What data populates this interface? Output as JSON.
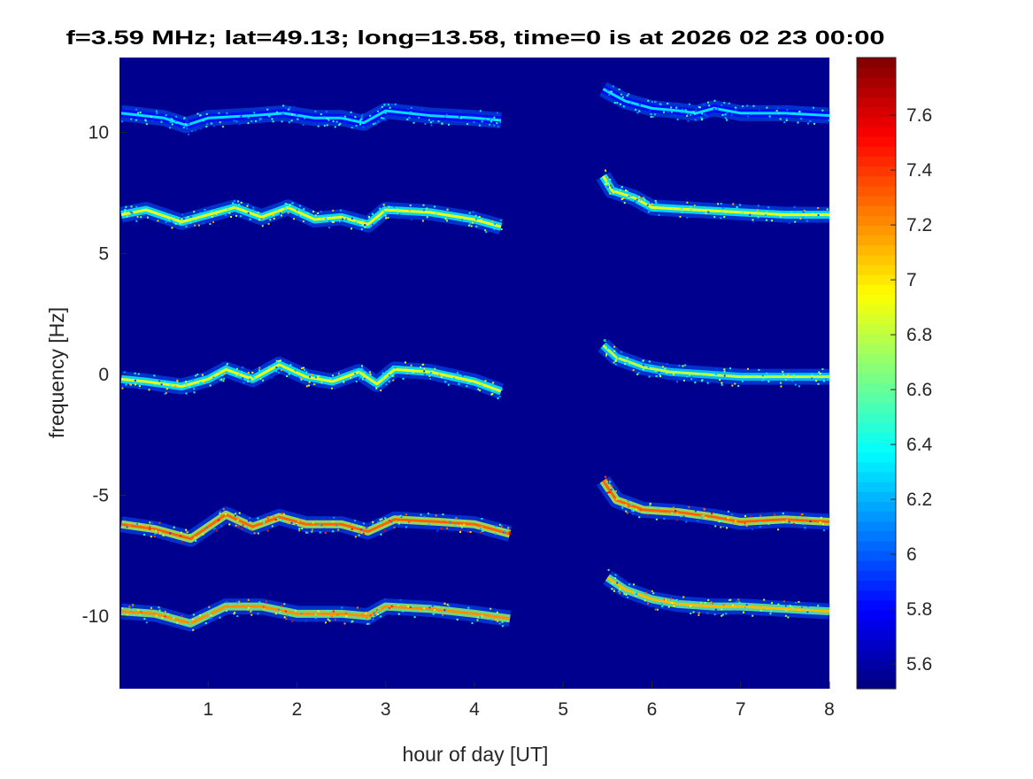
{
  "chart_data": {
    "type": "heatmap",
    "title": "f=3.59 MHz;  lat=49.13; long=13.58, time=0 is at 2026 02 23 00:00",
    "xlabel": "hour of day [UT]",
    "ylabel": "frequency [Hz]",
    "xlim": [
      0,
      8
    ],
    "ylim": [
      -13,
      13.1
    ],
    "xticks": [
      1,
      2,
      3,
      4,
      5,
      6,
      7,
      8
    ],
    "xtick_labels": [
      "1",
      "2",
      "3",
      "4",
      "5",
      "6",
      "7",
      "8"
    ],
    "yticks": [
      10,
      5,
      0,
      -5,
      -10
    ],
    "ytick_labels": [
      "10",
      "5",
      "0",
      "-5",
      "-10"
    ],
    "colormap": "jet",
    "background_color": "#00008F",
    "colorbar": {
      "clim": [
        5.51,
        7.81
      ],
      "ticks": [
        7.6,
        7.4,
        7.2,
        7,
        6.8,
        6.6,
        6.4,
        6.2,
        6,
        5.8,
        5.6
      ],
      "tick_labels": [
        "7.6",
        "7.4",
        "7.2",
        "7",
        "6.8",
        "6.6",
        "6.4",
        "6.2",
        "6",
        "5.8",
        "5.6"
      ]
    },
    "series": [
      {
        "name": "trace-left-10",
        "intensity": 6.3,
        "points": [
          [
            0.02,
            10.8
          ],
          [
            0.5,
            10.6
          ],
          [
            0.75,
            10.3
          ],
          [
            1,
            10.6
          ],
          [
            1.5,
            10.7
          ],
          [
            1.85,
            10.8
          ],
          [
            2.2,
            10.6
          ],
          [
            2.5,
            10.6
          ],
          [
            2.75,
            10.4
          ],
          [
            3,
            10.9
          ],
          [
            3.5,
            10.7
          ],
          [
            4,
            10.6
          ],
          [
            4.3,
            10.5
          ]
        ]
      },
      {
        "name": "trace-left-6",
        "intensity": 6.9,
        "points": [
          [
            0.02,
            6.6
          ],
          [
            0.3,
            6.8
          ],
          [
            0.7,
            6.3
          ],
          [
            1,
            6.6
          ],
          [
            1.3,
            6.9
          ],
          [
            1.6,
            6.5
          ],
          [
            1.9,
            6.9
          ],
          [
            2.2,
            6.4
          ],
          [
            2.5,
            6.5
          ],
          [
            2.8,
            6.2
          ],
          [
            3,
            6.8
          ],
          [
            3.5,
            6.7
          ],
          [
            4,
            6.4
          ],
          [
            4.3,
            6.1
          ]
        ]
      },
      {
        "name": "trace-left-0",
        "intensity": 6.9,
        "points": [
          [
            0.02,
            -0.2
          ],
          [
            0.3,
            -0.3
          ],
          [
            0.7,
            -0.5
          ],
          [
            1,
            -0.2
          ],
          [
            1.2,
            0.2
          ],
          [
            1.5,
            -0.2
          ],
          [
            1.8,
            0.4
          ],
          [
            2.1,
            -0.1
          ],
          [
            2.4,
            -0.3
          ],
          [
            2.7,
            0.1
          ],
          [
            2.9,
            -0.4
          ],
          [
            3.1,
            0.2
          ],
          [
            3.5,
            0.1
          ],
          [
            4,
            -0.3
          ],
          [
            4.3,
            -0.7
          ]
        ]
      },
      {
        "name": "trace-left-m6",
        "intensity": 7.3,
        "points": [
          [
            0.02,
            -6.2
          ],
          [
            0.4,
            -6.4
          ],
          [
            0.8,
            -6.8
          ],
          [
            1.2,
            -5.8
          ],
          [
            1.5,
            -6.3
          ],
          [
            1.8,
            -5.9
          ],
          [
            2.1,
            -6.2
          ],
          [
            2.5,
            -6.2
          ],
          [
            2.8,
            -6.5
          ],
          [
            3.1,
            -6.0
          ],
          [
            3.6,
            -6.1
          ],
          [
            4,
            -6.2
          ],
          [
            4.4,
            -6.6
          ]
        ]
      },
      {
        "name": "trace-left-m10",
        "intensity": 7.2,
        "points": [
          [
            0.02,
            -9.8
          ],
          [
            0.4,
            -9.9
          ],
          [
            0.8,
            -10.3
          ],
          [
            1.2,
            -9.6
          ],
          [
            1.6,
            -9.6
          ],
          [
            2,
            -9.9
          ],
          [
            2.5,
            -9.9
          ],
          [
            2.8,
            -10.0
          ],
          [
            3,
            -9.6
          ],
          [
            3.5,
            -9.7
          ],
          [
            4,
            -9.9
          ],
          [
            4.4,
            -10.1
          ]
        ]
      },
      {
        "name": "trace-right-11",
        "intensity": 6.3,
        "points": [
          [
            5.45,
            11.8
          ],
          [
            5.7,
            11.3
          ],
          [
            6,
            11.0
          ],
          [
            6.3,
            10.9
          ],
          [
            6.5,
            10.8
          ],
          [
            6.7,
            11.0
          ],
          [
            7,
            10.8
          ],
          [
            7.5,
            10.8
          ],
          [
            8,
            10.7
          ]
        ]
      },
      {
        "name": "trace-right-7",
        "intensity": 6.9,
        "points": [
          [
            5.45,
            8.2
          ],
          [
            5.55,
            7.6
          ],
          [
            5.8,
            7.3
          ],
          [
            6,
            6.9
          ],
          [
            6.5,
            6.8
          ],
          [
            7,
            6.7
          ],
          [
            7.5,
            6.6
          ],
          [
            8,
            6.6
          ]
        ]
      },
      {
        "name": "trace-right-0",
        "intensity": 6.8,
        "points": [
          [
            5.45,
            1.2
          ],
          [
            5.6,
            0.7
          ],
          [
            5.9,
            0.3
          ],
          [
            6.2,
            0.1
          ],
          [
            6.6,
            0.0
          ],
          [
            7,
            -0.1
          ],
          [
            7.5,
            -0.1
          ],
          [
            8,
            -0.1
          ]
        ]
      },
      {
        "name": "trace-right-m6",
        "intensity": 7.3,
        "points": [
          [
            5.45,
            -4.4
          ],
          [
            5.6,
            -5.2
          ],
          [
            5.9,
            -5.6
          ],
          [
            6.3,
            -5.7
          ],
          [
            6.7,
            -5.9
          ],
          [
            7,
            -6.1
          ],
          [
            7.5,
            -6.0
          ],
          [
            8,
            -6.1
          ]
        ]
      },
      {
        "name": "trace-right-m10",
        "intensity": 7.1,
        "points": [
          [
            5.5,
            -8.4
          ],
          [
            5.7,
            -8.9
          ],
          [
            6,
            -9.3
          ],
          [
            6.3,
            -9.5
          ],
          [
            6.7,
            -9.6
          ],
          [
            7,
            -9.6
          ],
          [
            7.5,
            -9.7
          ],
          [
            8,
            -9.8
          ]
        ]
      }
    ]
  }
}
